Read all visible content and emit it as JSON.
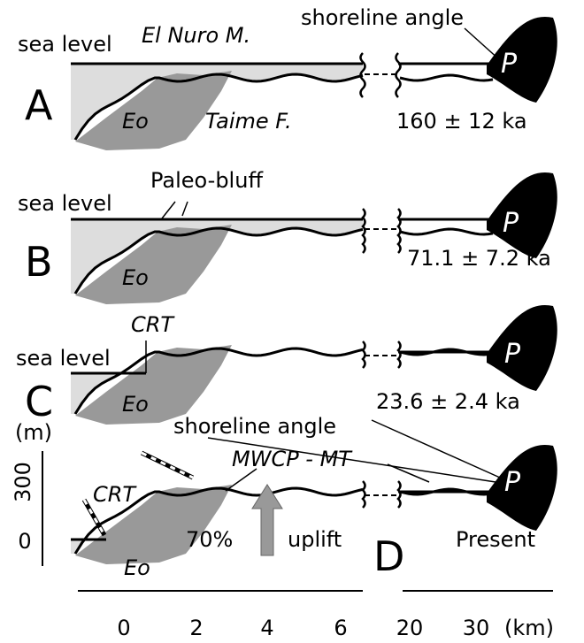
{
  "panels": [
    {
      "letter": "A",
      "sea_level": "sea level",
      "formation_top": "El Nuro M.",
      "shoreline": "shoreline angle",
      "formation": "Taime F.",
      "basement": "Eo",
      "peak": "P",
      "age": "160 ± 12 ka"
    },
    {
      "letter": "B",
      "sea_level": "sea level",
      "feature": "Paleo-bluff",
      "basement": "Eo",
      "peak": "P",
      "age": "71.1 ± 7.2 ka"
    },
    {
      "letter": "C",
      "sea_level": "sea level",
      "feature": "CRT",
      "basement": "Eo",
      "peak": "P",
      "age": "23.6 ± 2.4 ka"
    },
    {
      "letter": "D",
      "shoreline": "shoreline angle",
      "terrace": "MWCP - MT",
      "feature": "CRT",
      "basement": "Eo",
      "peak": "P",
      "percent": "70%",
      "uplift": "uplift",
      "age": "Present"
    }
  ],
  "axes": {
    "x_labels": [
      "0",
      "2",
      "4",
      "6",
      "20",
      "30",
      "(km)"
    ],
    "y_unit": "(m)",
    "y_labels": [
      "300",
      "0"
    ]
  }
}
